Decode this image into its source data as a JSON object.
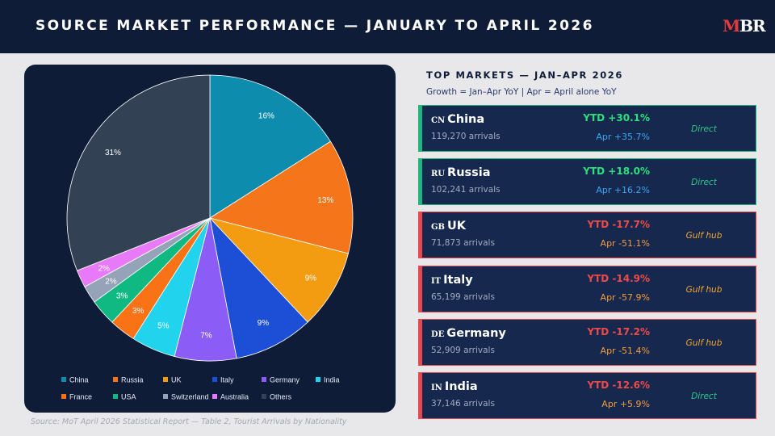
{
  "header": {
    "title": "SOURCE MARKET PERFORMANCE  —  JANUARY TO APRIL 2026",
    "logo_m": "M",
    "logo_rest": "BR"
  },
  "source_note": "Source: MoT April 2026 Statistical Report — Table 2, Tourist Arrivals by Nationality",
  "chart_data": {
    "type": "pie",
    "categories": [
      "China",
      "Russia",
      "UK",
      "Italy",
      "Germany",
      "India",
      "France",
      "USA",
      "Switzerland",
      "Australia",
      "Others"
    ],
    "values": [
      16,
      13,
      9,
      9,
      7,
      5,
      3,
      3,
      2,
      2,
      31
    ],
    "labels": [
      "16%",
      "13%",
      "9%",
      "9%",
      "7%",
      "5%",
      "3%",
      "3%",
      "2%",
      "2%",
      "31%"
    ],
    "colors": [
      "#0e8cad",
      "#f5761a",
      "#f39c12",
      "#1c4fd6",
      "#8b5cf6",
      "#22d3ee",
      "#f97316",
      "#10b981",
      "#94a3b8",
      "#e879f9",
      "#334155"
    ],
    "legend_position": "bottom"
  },
  "top_markets": {
    "title": "TOP MARKETS  —  JAN–APR 2026",
    "subtitle": "Growth = Jan–Apr YoY  |  Apr = April alone YoY",
    "items": [
      {
        "code": "CN",
        "country": "China",
        "arrivals": "119,270 arrivals",
        "ytd": "YTD +30.1%",
        "apr": "Apr +35.7%",
        "route": "Direct",
        "trend": "up"
      },
      {
        "code": "RU",
        "country": "Russia",
        "arrivals": "102,241 arrivals",
        "ytd": "YTD +18.0%",
        "apr": "Apr +16.2%",
        "route": "Direct",
        "trend": "up"
      },
      {
        "code": "GB",
        "country": "UK",
        "arrivals": "71,873 arrivals",
        "ytd": "YTD -17.7%",
        "apr": "Apr -51.1%",
        "route": "Gulf hub",
        "trend": "down"
      },
      {
        "code": "IT",
        "country": "Italy",
        "arrivals": "65,199 arrivals",
        "ytd": "YTD -14.9%",
        "apr": "Apr -57.9%",
        "route": "Gulf hub",
        "trend": "down"
      },
      {
        "code": "DE",
        "country": "Germany",
        "arrivals": "52,909 arrivals",
        "ytd": "YTD -17.2%",
        "apr": "Apr -51.4%",
        "route": "Gulf hub",
        "trend": "down"
      },
      {
        "code": "IN",
        "country": "India",
        "arrivals": "37,146 arrivals",
        "ytd": "YTD -12.6%",
        "apr": "Apr +5.9%",
        "route": "Direct",
        "trend": "down"
      }
    ]
  },
  "colors": {
    "navy": "#0f1c38",
    "card_bg": "#16284e",
    "up_border": "#1fb57d",
    "up_text": "#2ee07c",
    "up_apr": "#3aa8f0",
    "down_border": "#e5484d",
    "down_text": "#ef4a4a",
    "down_apr": "#f39c3c",
    "direct_text": "#2ec98a",
    "gulf_text": "#f0a530"
  }
}
